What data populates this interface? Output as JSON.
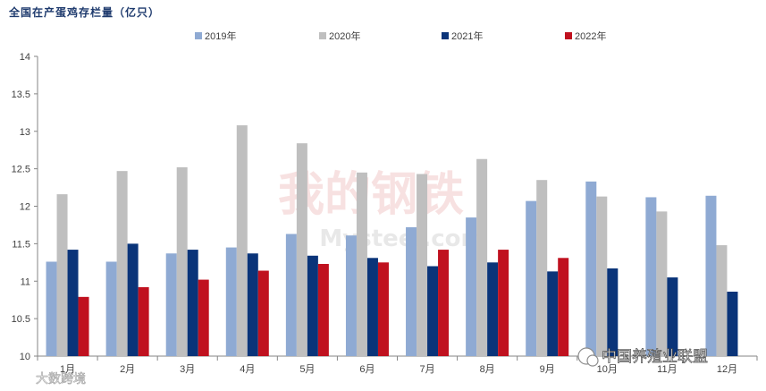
{
  "chart_data": {
    "type": "bar",
    "title": "全国在产蛋鸡存栏量（亿只）",
    "categories": [
      "1月",
      "2月",
      "3月",
      "4月",
      "5月",
      "6月",
      "7月",
      "8月",
      "9月",
      "10月",
      "11月",
      "12月"
    ],
    "series": [
      {
        "name": "2019年",
        "color": "#8faad3",
        "values": [
          11.26,
          11.26,
          11.37,
          11.45,
          11.63,
          11.61,
          11.72,
          11.85,
          12.07,
          12.33,
          12.12,
          12.14
        ]
      },
      {
        "name": "2020年",
        "color": "#bfbfbf",
        "values": [
          12.16,
          12.47,
          12.52,
          13.08,
          12.84,
          12.45,
          12.43,
          12.63,
          12.35,
          12.13,
          11.93,
          11.48
        ]
      },
      {
        "name": "2021年",
        "color": "#0a3479",
        "values": [
          11.42,
          11.5,
          11.42,
          11.37,
          11.34,
          11.31,
          11.2,
          11.25,
          11.13,
          11.17,
          11.05,
          10.86
        ]
      },
      {
        "name": "2022年",
        "color": "#c0111f",
        "values": [
          10.79,
          10.92,
          11.02,
          11.14,
          11.23,
          11.25,
          11.42,
          11.42,
          11.31,
          null,
          null,
          null
        ]
      }
    ],
    "ylim": [
      10,
      14
    ],
    "yticks": [
      "10",
      "10.5",
      "11",
      "11.5",
      "12",
      "12.5",
      "13",
      "13.5",
      "14"
    ],
    "ytick_values": [
      10,
      10.5,
      11,
      11.5,
      12,
      12.5,
      13,
      13.5,
      14
    ],
    "legend_position": "top",
    "grid": false
  },
  "watermarks": {
    "center": "我的钢铁",
    "center_sub": "Mysteel.com",
    "bottom_left": "大数跨境",
    "bottom_right": "中国养殖业联盟"
  }
}
